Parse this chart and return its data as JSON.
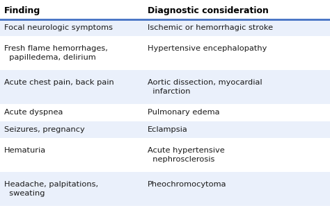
{
  "col1_header": "Finding",
  "col2_header": "Diagnostic consideration",
  "rows": [
    {
      "finding_lines": [
        "Focal neurologic symptoms"
      ],
      "diagnosis_lines": [
        "Ischemic or hemorrhagic stroke"
      ],
      "bg": "#eaf0fb",
      "n_lines": 1
    },
    {
      "finding_lines": [
        "Fresh flame hemorrhages,",
        "  papilledema, delirium"
      ],
      "diagnosis_lines": [
        "Hypertensive encephalopathy",
        ""
      ],
      "bg": "#ffffff",
      "n_lines": 2
    },
    {
      "finding_lines": [
        "Acute chest pain, back pain",
        ""
      ],
      "diagnosis_lines": [
        "Aortic dissection, myocardial",
        "  infarction"
      ],
      "bg": "#eaf0fb",
      "n_lines": 2
    },
    {
      "finding_lines": [
        "Acute dyspnea"
      ],
      "diagnosis_lines": [
        "Pulmonary edema"
      ],
      "bg": "#ffffff",
      "n_lines": 1
    },
    {
      "finding_lines": [
        "Seizures, pregnancy"
      ],
      "diagnosis_lines": [
        "Eclampsia"
      ],
      "bg": "#eaf0fb",
      "n_lines": 1
    },
    {
      "finding_lines": [
        "Hematuria",
        ""
      ],
      "diagnosis_lines": [
        "Acute hypertensive",
        "  nephrosclerosis"
      ],
      "bg": "#ffffff",
      "n_lines": 2
    },
    {
      "finding_lines": [
        "Headache, palpitations,",
        "  sweating"
      ],
      "diagnosis_lines": [
        "Pheochromocytoma",
        ""
      ],
      "bg": "#eaf0fb",
      "n_lines": 2
    }
  ],
  "header_bg": "#ffffff",
  "header_line_color": "#4472c4",
  "text_color": "#1a1a1a",
  "header_text_color": "#000000",
  "font_size": 8.2,
  "header_font_size": 9.0,
  "col_split": 0.435,
  "fig_bg": "#ffffff",
  "fig_width": 4.74,
  "fig_height": 3.0,
  "dpi": 100
}
